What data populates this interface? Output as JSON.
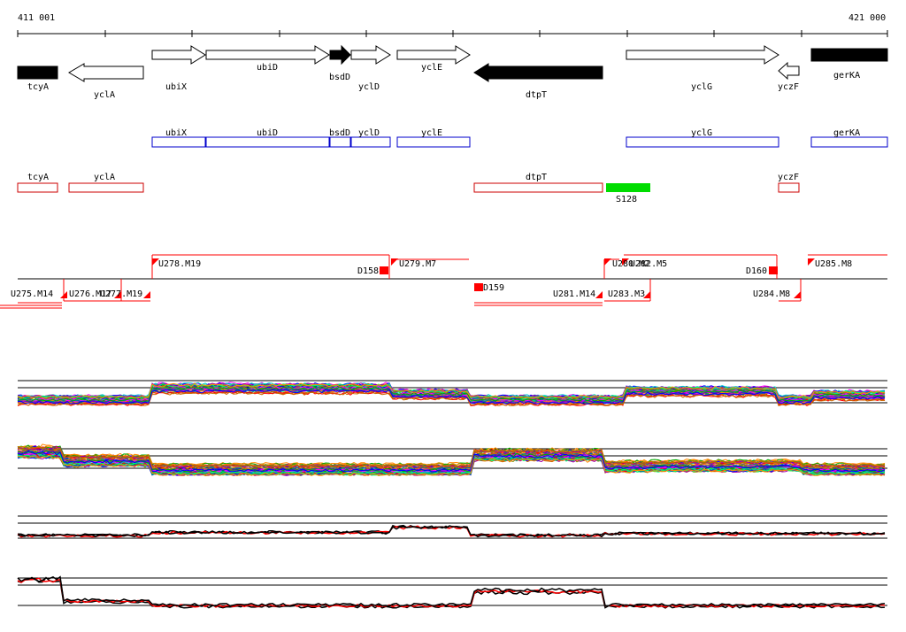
{
  "coordinates": {
    "start_label": "411 001",
    "end_label": "421 000"
  },
  "genes": [
    {
      "name": "tcyA",
      "strand": "none",
      "filled": true
    },
    {
      "name": "yclA",
      "strand": "reverse",
      "filled": false
    },
    {
      "name": "ubiX",
      "strand": "forward",
      "filled": false
    },
    {
      "name": "ubiD",
      "strand": "forward",
      "filled": false
    },
    {
      "name": "bsdD",
      "strand": "forward",
      "filled": true
    },
    {
      "name": "yclD",
      "strand": "forward",
      "filled": false
    },
    {
      "name": "yclE",
      "strand": "forward",
      "filled": false
    },
    {
      "name": "dtpT",
      "strand": "reverse",
      "filled": true
    },
    {
      "name": "yclG",
      "strand": "forward",
      "filled": false
    },
    {
      "name": "yczF",
      "strand": "reverse",
      "filled": false
    },
    {
      "name": "gerKA",
      "strand": "none",
      "filled": true
    }
  ],
  "forward_operon_labels": [
    "ubiX",
    "ubiD",
    "bsdD",
    "yclD",
    "yclE",
    "yclG",
    "gerKA"
  ],
  "reverse_operon_labels": [
    "tcyA",
    "yclA",
    "dtpT",
    "yczF"
  ],
  "green_feature": {
    "label": "S128",
    "color": "#00dd00"
  },
  "upper_segments": [
    "U278.M19",
    "D158",
    "U279.M7",
    "U280.M2",
    "U282.M5",
    "D160",
    "U285.M8"
  ],
  "lower_segments": [
    "U275.M14",
    "U276.M17",
    "U277.M19",
    "D159",
    "U281.M14",
    "U283.M3",
    "U284.M8"
  ],
  "colors": {
    "gene_outline": "#000000",
    "forward_box": "#0000cc",
    "reverse_box": "#cc0000",
    "segment": "#ff0000"
  }
}
